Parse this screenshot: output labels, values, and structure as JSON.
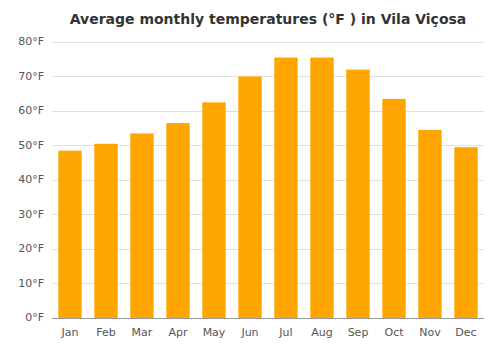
{
  "chart_data": {
    "type": "bar",
    "title": "Average monthly temperatures (°F ) in Vila Viçosa",
    "categories": [
      "Jan",
      "Feb",
      "Mar",
      "Apr",
      "May",
      "Jun",
      "Jul",
      "Aug",
      "Sep",
      "Oct",
      "Nov",
      "Dec"
    ],
    "values": [
      48.5,
      50.5,
      53.5,
      56.5,
      62.5,
      70.0,
      75.5,
      75.5,
      72.0,
      63.5,
      54.5,
      49.5
    ],
    "color": "#FFA500",
    "ylim": [
      0,
      80
    ],
    "yticks": [
      {
        "value": 0,
        "label": "0°F"
      },
      {
        "value": 10,
        "label": "10°F"
      },
      {
        "value": 20,
        "label": "20°F"
      },
      {
        "value": 30,
        "label": "30°F"
      },
      {
        "value": 40,
        "label": "40°F"
      },
      {
        "value": 50,
        "label": "50°F"
      },
      {
        "value": 60,
        "label": "60°F"
      },
      {
        "value": 70,
        "label": "70°F"
      },
      {
        "value": 80,
        "label": "80°F"
      }
    ],
    "grid": true
  }
}
